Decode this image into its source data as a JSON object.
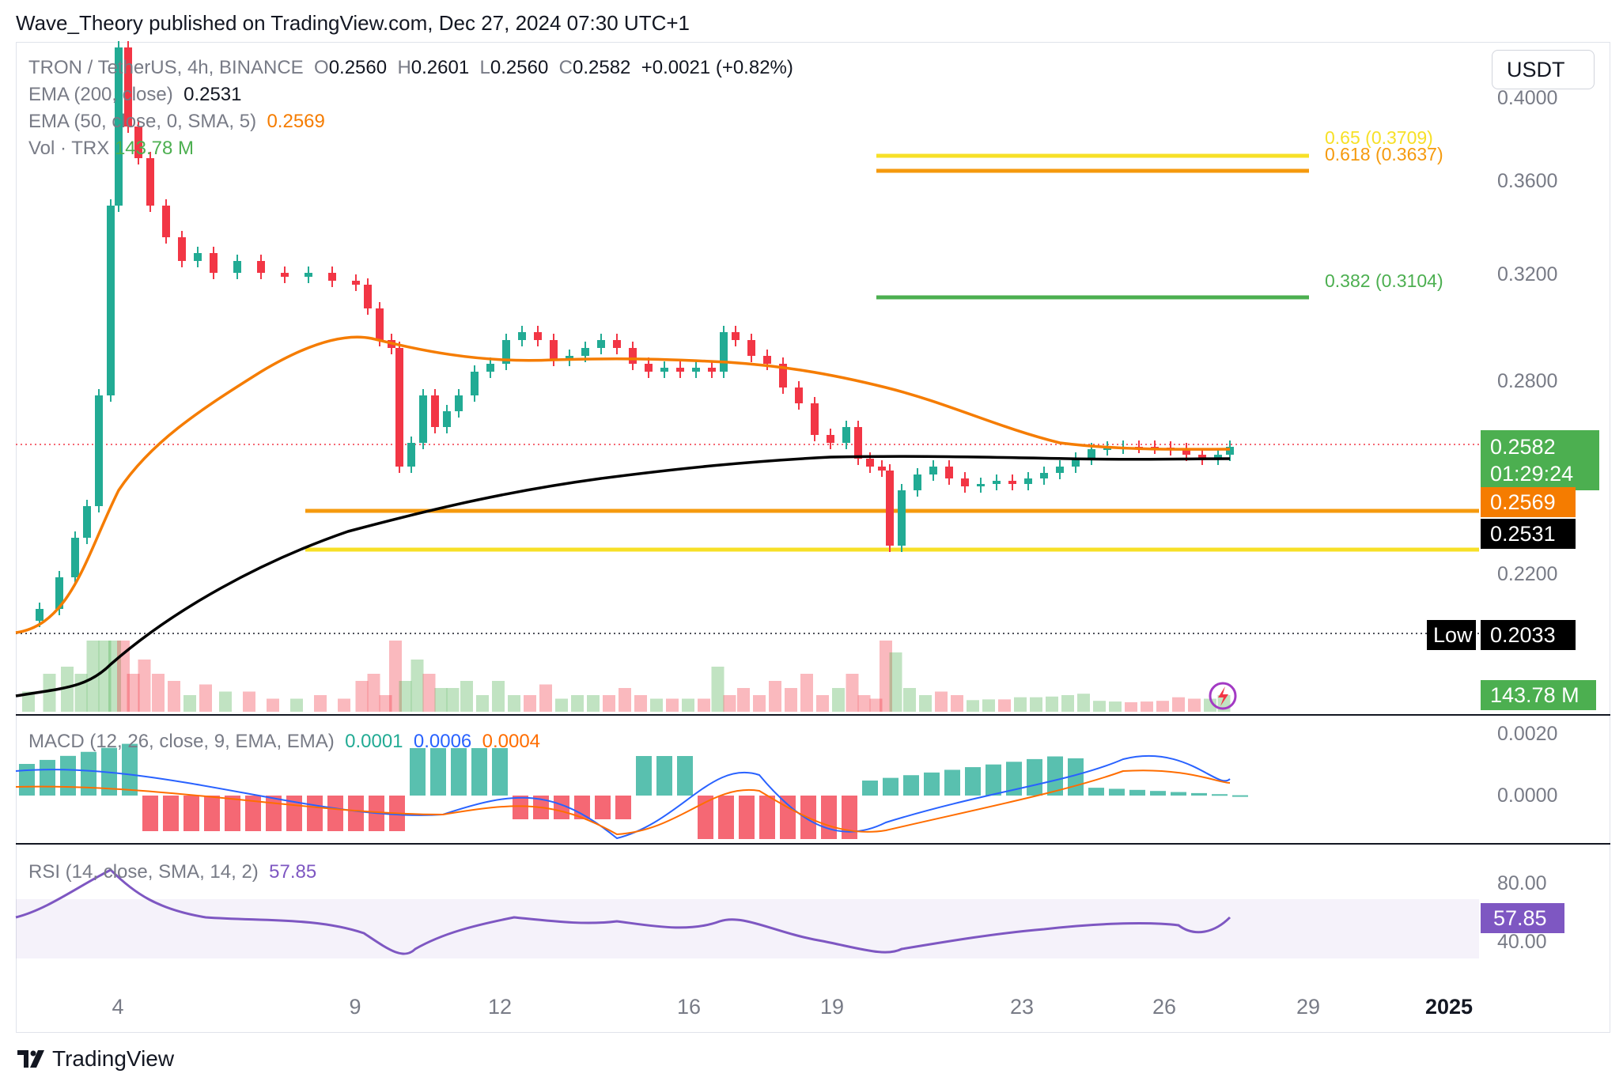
{
  "header": {
    "publisher_line": "Wave_Theory published on TradingView.com, Dec 27, 2024 07:30 UTC+1"
  },
  "legend": {
    "symbol": "TRON / TetherUS, 4h, BINANCE",
    "o_label": "O",
    "o": "0.2560",
    "h_label": "H",
    "h": "0.2601",
    "l_label": "L",
    "l": "0.2560",
    "c_label": "C",
    "c": "0.2582",
    "change": "+0.0021 (+0.82%)",
    "ema200_label": "EMA (200, close)",
    "ema200_value": "0.2531",
    "ema50_label": "EMA (50, close, 0, SMA, 5)",
    "ema50_value": "0.2569",
    "vol_label": "Vol · TRX",
    "vol_value": "143.78 M"
  },
  "currency_button": "USDT",
  "fib_levels": [
    {
      "label": "0.65 (0.3709)",
      "color": "#f7e027"
    },
    {
      "label": "0.618 (0.3637)",
      "color": "#f59a0e"
    },
    {
      "label": "0.382 (0.3104)",
      "color": "#4caf50"
    }
  ],
  "price_axis": [
    "0.4000",
    "0.3600",
    "0.3200",
    "0.2800",
    "0.2200"
  ],
  "price_tags": {
    "last_price": "0.2582",
    "countdown": "01:29:24",
    "ema50": "0.2569",
    "ema200": "0.2531",
    "low_label": "Low",
    "low_value": "0.2033",
    "volume": "143.78 M"
  },
  "macd": {
    "label": "MACD (12, 26, close, 9, EMA, EMA)",
    "hist": "0.0001",
    "macd": "0.0006",
    "signal": "0.0004",
    "axis": [
      "0.0020",
      "0.0000"
    ]
  },
  "rsi": {
    "label": "RSI (14, close, SMA, 14, 2)",
    "value": "57.85",
    "axis": [
      "80.00",
      "40.00"
    ]
  },
  "date_axis": [
    "4",
    "9",
    "12",
    "16",
    "19",
    "23",
    "26",
    "29",
    "2025"
  ],
  "footer": {
    "brand": "TradingView"
  },
  "colors": {
    "up": "#22ab94",
    "down": "#f23645",
    "ema50": "#f57c00",
    "ema200": "#000000",
    "macd": "#2962ff",
    "signal": "#ff6d00",
    "rsi": "#7e57c2"
  },
  "chart_data": {
    "type": "candlestick",
    "title": "TRON / TetherUS, 4h, BINANCE",
    "x_axis_labels": [
      "4",
      "9",
      "12",
      "16",
      "19",
      "23",
      "26",
      "29",
      "2025"
    ],
    "y_axis_range": [
      0.2,
      0.41
    ],
    "price_points_approx": [
      {
        "date": "Dec 3",
        "close": 0.205
      },
      {
        "date": "Dec 4",
        "close": 0.41
      },
      {
        "date": "Dec 5",
        "close": 0.32
      },
      {
        "date": "Dec 8",
        "close": 0.317
      },
      {
        "date": "Dec 9",
        "close": 0.296
      },
      {
        "date": "Dec 10",
        "close": 0.245
      },
      {
        "date": "Dec 12",
        "close": 0.297
      },
      {
        "date": "Dec 16",
        "close": 0.281
      },
      {
        "date": "Dec 17",
        "close": 0.296
      },
      {
        "date": "Dec 19",
        "close": 0.261
      },
      {
        "date": "Dec 20",
        "close": 0.225
      },
      {
        "date": "Dec 23",
        "close": 0.25
      },
      {
        "date": "Dec 25",
        "close": 0.259
      },
      {
        "date": "Dec 27",
        "close": 0.2582
      }
    ],
    "horizontal_levels": {
      "support_orange": 0.2435,
      "support_yellow": 0.2252,
      "low": 0.2033,
      "fib_0_382": 0.3104,
      "fib_0_618": 0.3637,
      "fib_0_65": 0.3709
    },
    "ema50_last": 0.2569,
    "ema200_last": 0.2531,
    "macd": {
      "hist": 0.0001,
      "macd": 0.0006,
      "signal": 0.0004
    },
    "rsi": 57.85,
    "rsi_band": [
      40,
      80
    ],
    "volume_last": "143.78 M"
  }
}
